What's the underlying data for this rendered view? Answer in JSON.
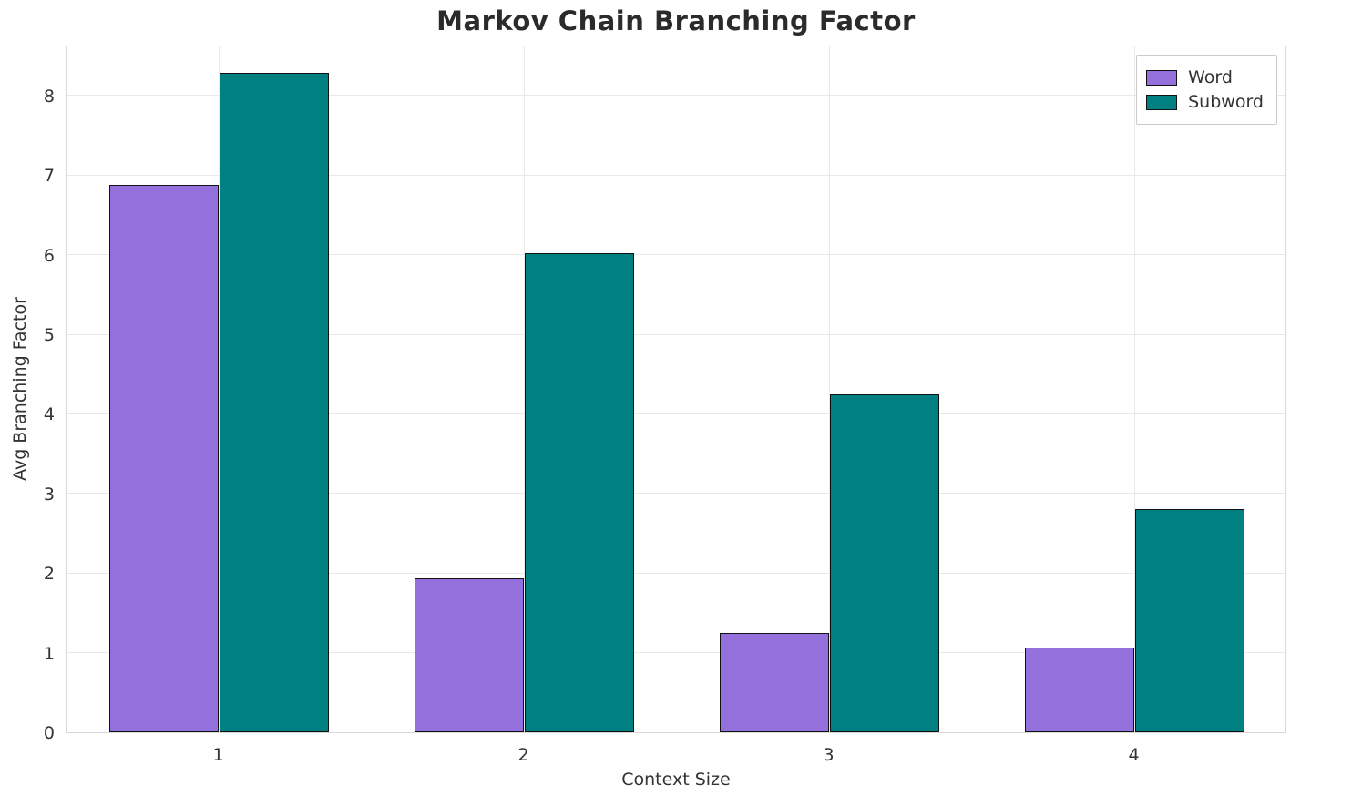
{
  "chart_data": {
    "type": "bar",
    "title": "Markov Chain Branching Factor",
    "xlabel": "Context Size",
    "ylabel": "Avg Branching Factor",
    "categories": [
      "1",
      "2",
      "3",
      "4"
    ],
    "series": [
      {
        "name": "Word",
        "color": "#9370DB",
        "values": [
          6.88,
          1.93,
          1.25,
          1.07
        ]
      },
      {
        "name": "Subword",
        "color": "#008080",
        "values": [
          8.28,
          6.02,
          4.25,
          2.8
        ]
      }
    ],
    "yticks": [
      0,
      1,
      2,
      3,
      4,
      5,
      6,
      7,
      8
    ],
    "ylim": [
      0,
      8.64
    ],
    "grid": true,
    "legend_position": "upper right",
    "bar_edge_color": "#111111"
  }
}
